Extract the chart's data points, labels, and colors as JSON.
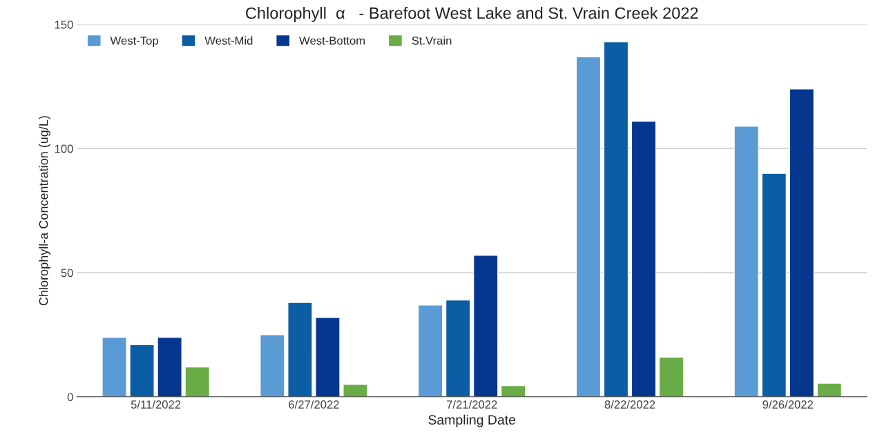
{
  "chart_data": {
    "type": "bar",
    "title": "Chlorophyll  α   - Barefoot West Lake and St. Vrain Creek 2022",
    "xlabel": "Sampling Date",
    "ylabel": "Chlorophyll-a Concentration (ug/L)",
    "categories": [
      "5/11/2022",
      "6/27/2022",
      "7/21/2022",
      "8/22/2022",
      "9/26/2022"
    ],
    "series": [
      {
        "name": "West-Top",
        "color": "#5b9bd5",
        "values": [
          24,
          25,
          37,
          137,
          109
        ]
      },
      {
        "name": "West-Mid",
        "color": "#0b5ea3",
        "values": [
          21,
          38,
          39,
          143,
          90
        ]
      },
      {
        "name": "West-Bottom",
        "color": "#05378f",
        "values": [
          24,
          32,
          57,
          111,
          124
        ]
      },
      {
        "name": "St.Vrain",
        "color": "#6aac46",
        "values": [
          12,
          5,
          4.5,
          16,
          5.5
        ]
      }
    ],
    "ylim": [
      0,
      150
    ],
    "yticks": [
      0,
      50,
      100,
      150
    ],
    "grid": "y",
    "legend": "top left"
  }
}
